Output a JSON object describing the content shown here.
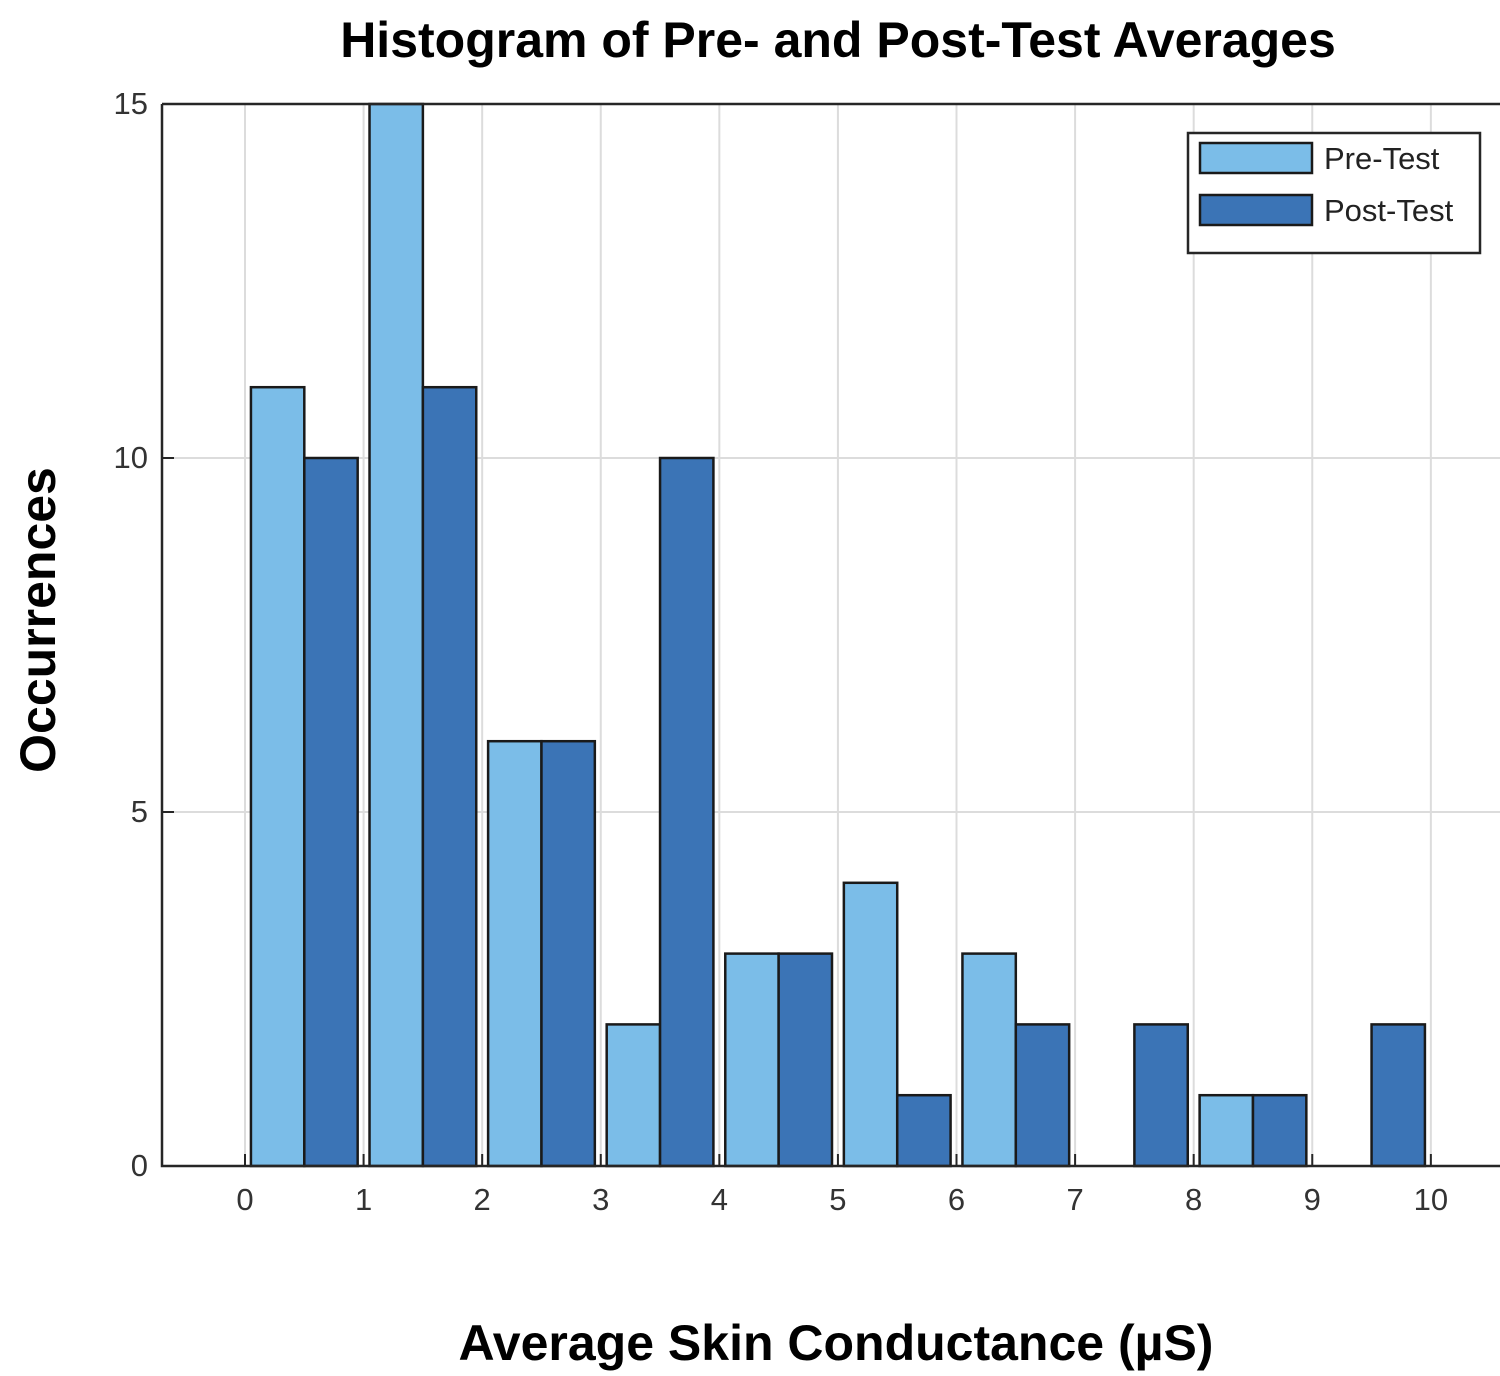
{
  "chart_data": {
    "type": "bar",
    "title": "Histogram of Pre- and Post-Test Averages",
    "xlabel": "Average Skin Conductance (µS)",
    "ylabel": "Occurrences",
    "xlim": [
      -0.7,
      10.6
    ],
    "ylim": [
      0,
      15
    ],
    "x_ticks": [
      "0",
      "1",
      "2",
      "3",
      "4",
      "5",
      "6",
      "7",
      "8",
      "9",
      "10"
    ],
    "y_ticks": [
      "0",
      "5",
      "10",
      "15"
    ],
    "grid": true,
    "legend_position": "top-right",
    "bin_width": 1,
    "bin_starts": [
      0,
      1,
      2,
      3,
      4,
      5,
      6,
      7,
      8,
      9
    ],
    "series": [
      {
        "name": "Pre-Test",
        "color": "#7bbde8",
        "values": [
          11,
          15,
          6,
          2,
          3,
          4,
          3,
          0,
          1,
          0
        ]
      },
      {
        "name": "Post-Test",
        "color": "#3b74b6",
        "values": [
          10,
          11,
          6,
          10,
          3,
          1,
          2,
          2,
          1,
          2
        ]
      }
    ]
  }
}
